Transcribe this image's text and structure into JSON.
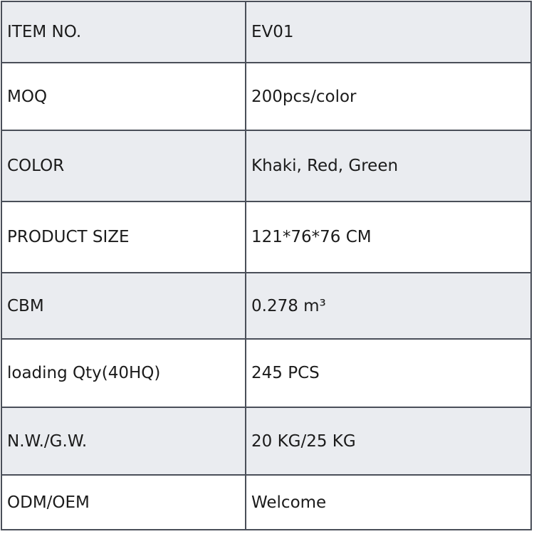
{
  "spec_table": {
    "rows": [
      {
        "label": "ITEM NO.",
        "value": "EV01"
      },
      {
        "label": "MOQ",
        "value": "200pcs/color"
      },
      {
        "label": "COLOR",
        "value": "Khaki, Red, Green"
      },
      {
        "label": "PRODUCT SIZE",
        "value": "121*76*76 CM"
      },
      {
        "label": "CBM",
        "value": "0.278 m³"
      },
      {
        "label": "loading Qty(40HQ)",
        "value": "245 PCS"
      },
      {
        "label": "N.W./G.W.",
        "value": "20 KG/25 KG"
      },
      {
        "label": "ODM/OEM",
        "value": "Welcome"
      }
    ]
  },
  "colors": {
    "border": "#4a4f59",
    "row_shaded_bg": "#eaecf0",
    "row_plain_bg": "#ffffff",
    "text": "#1b1b1b"
  }
}
